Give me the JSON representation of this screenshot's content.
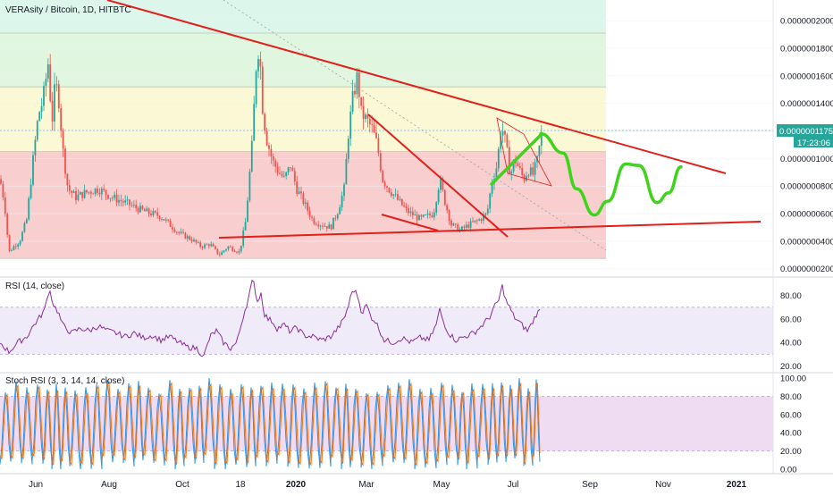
{
  "chart_data": [
    {
      "type": "candlestick",
      "title": "VERAsity / Bitcoin, 1D, HITBTC",
      "price_badge": {
        "value": "0.0000001175",
        "countdown": "17:23:06",
        "color": "#26a69a"
      },
      "y_ticks": [
        "0.0000002000",
        "0.0000001800",
        "0.0000001600",
        "0.0000001400",
        "0.0000001200",
        "0.0000001000",
        "0.0000000800",
        "0.0000000600",
        "0.0000000400",
        "0.0000000200"
      ],
      "ylim": [
        1.4e-08,
        2.15e-07
      ],
      "fib_zones": [
        {
          "from": 2.75e-08,
          "to": 1.05e-07,
          "color": "#f3a6a6"
        },
        {
          "from": 1.05e-07,
          "to": 1.52e-07,
          "color": "#f7f3b4"
        },
        {
          "from": 1.52e-07,
          "to": 1.91e-07,
          "color": "#c9efc3"
        },
        {
          "from": 1.91e-07,
          "to": 2.15e-07,
          "color": "#bfeedd"
        }
      ],
      "colors": {
        "up": "#26a69a",
        "down": "#ef5350",
        "trendline": "#e0201b",
        "projection": "#3ed41c"
      },
      "approx_price_series": [
        [
          0,
          8.5e-08
        ],
        [
          5,
          6.8e-08
        ],
        [
          10,
          3.2e-08
        ],
        [
          15,
          3.6e-08
        ],
        [
          22,
          4e-08
        ],
        [
          30,
          5.6e-08
        ],
        [
          38,
          1.05e-07
        ],
        [
          43,
          1.32e-07
        ],
        [
          48,
          1.42e-07
        ],
        [
          54,
          1.7e-07
        ],
        [
          58,
          1.25e-07
        ],
        [
          62,
          1.55e-07
        ],
        [
          66,
          1.42e-07
        ],
        [
          70,
          1.08e-07
        ],
        [
          76,
          7.8e-08
        ],
        [
          85,
          7.2e-08
        ],
        [
          95,
          7.5e-08
        ],
        [
          110,
          7.8e-08
        ],
        [
          125,
          7.2e-08
        ],
        [
          140,
          6.8e-08
        ],
        [
          160,
          6.2e-08
        ],
        [
          180,
          5.8e-08
        ],
        [
          200,
          4.6e-08
        ],
        [
          215,
          4.1e-08
        ],
        [
          225,
          3.6e-08
        ],
        [
          235,
          3.8e-08
        ],
        [
          245,
          3e-08
        ],
        [
          255,
          3.6e-08
        ],
        [
          262,
          3.4e-08
        ],
        [
          268,
          3.2e-08
        ],
        [
          275,
          5.5e-08
        ],
        [
          282,
          1.1e-07
        ],
        [
          287,
          1.72e-07
        ],
        [
          290,
          1.83e-07
        ],
        [
          294,
          1.35e-07
        ],
        [
          298,
          1.15e-07
        ],
        [
          305,
          9.8e-08
        ],
        [
          312,
          9e-08
        ],
        [
          318,
          8.5e-08
        ],
        [
          325,
          9.5e-08
        ],
        [
          332,
          7.8e-08
        ],
        [
          340,
          6.8e-08
        ],
        [
          350,
          5.5e-08
        ],
        [
          360,
          5.2e-08
        ],
        [
          370,
          5e-08
        ],
        [
          378,
          6.2e-08
        ],
        [
          385,
          7.8e-08
        ],
        [
          390,
          1.2e-07
        ],
        [
          395,
          1.45e-07
        ],
        [
          400,
          1.6e-07
        ],
        [
          404,
          1.33e-07
        ],
        [
          410,
          1.28e-07
        ],
        [
          416,
          1.22e-07
        ],
        [
          422,
          1.1e-07
        ],
        [
          428,
          8.5e-08
        ],
        [
          435,
          7.8e-08
        ],
        [
          445,
          7e-08
        ],
        [
          455,
          6.2e-08
        ],
        [
          470,
          5.6e-08
        ],
        [
          485,
          6e-08
        ],
        [
          492,
          8.5e-08
        ],
        [
          498,
          6.8e-08
        ],
        [
          505,
          5.2e-08
        ],
        [
          515,
          4.8e-08
        ],
        [
          525,
          5.2e-08
        ],
        [
          535,
          5.5e-08
        ],
        [
          545,
          6e-08
        ],
        [
          550,
          8.2e-08
        ],
        [
          556,
          9.5e-08
        ],
        [
          561,
          1.25e-07
        ],
        [
          566,
          1.1e-07
        ],
        [
          571,
          8.8e-08
        ],
        [
          576,
          1e-07
        ],
        [
          581,
          9.2e-08
        ],
        [
          586,
          8.5e-08
        ],
        [
          591,
          9.2e-08
        ],
        [
          596,
          8.8e-08
        ],
        [
          601,
          9.8e-08
        ],
        [
          606,
          1.18e-07
        ]
      ],
      "projection_wave": [
        [
          605,
          1.18e-07
        ],
        [
          630,
          1.04e-07
        ],
        [
          645,
          7.8e-08
        ],
        [
          665,
          5.9e-08
        ],
        [
          680,
          6.9e-08
        ],
        [
          700,
          9.6e-08
        ],
        [
          715,
          9.5e-08
        ],
        [
          735,
          6.8e-08
        ],
        [
          748,
          7.5e-08
        ],
        [
          762,
          9.4e-08
        ]
      ]
    },
    {
      "type": "line",
      "title": "RSI (14, close)",
      "y_ticks": [
        "80.00",
        "60.00",
        "40.00",
        "20.00"
      ],
      "ylim": [
        15,
        95
      ],
      "band": [
        30,
        70
      ],
      "line_color": "#8a2d9a",
      "values_approx": [
        [
          0,
          40
        ],
        [
          10,
          32
        ],
        [
          20,
          40
        ],
        [
          30,
          45
        ],
        [
          38,
          55
        ],
        [
          45,
          62
        ],
        [
          50,
          68
        ],
        [
          55,
          86
        ],
        [
          60,
          72
        ],
        [
          65,
          66
        ],
        [
          70,
          55
        ],
        [
          80,
          48
        ],
        [
          90,
          52
        ],
        [
          100,
          50
        ],
        [
          110,
          54
        ],
        [
          120,
          50
        ],
        [
          130,
          48
        ],
        [
          140,
          45
        ],
        [
          150,
          48
        ],
        [
          160,
          44
        ],
        [
          170,
          46
        ],
        [
          180,
          42
        ],
        [
          190,
          45
        ],
        [
          200,
          40
        ],
        [
          210,
          36
        ],
        [
          220,
          35
        ],
        [
          228,
          28
        ],
        [
          235,
          45
        ],
        [
          242,
          50
        ],
        [
          250,
          40
        ],
        [
          258,
          35
        ],
        [
          265,
          40
        ],
        [
          272,
          62
        ],
        [
          278,
          78
        ],
        [
          283,
          94
        ],
        [
          288,
          75
        ],
        [
          292,
          82
        ],
        [
          296,
          64
        ],
        [
          300,
          60
        ],
        [
          305,
          58
        ],
        [
          310,
          52
        ],
        [
          318,
          55
        ],
        [
          325,
          49
        ],
        [
          332,
          53
        ],
        [
          340,
          46
        ],
        [
          350,
          45
        ],
        [
          360,
          42
        ],
        [
          370,
          45
        ],
        [
          378,
          52
        ],
        [
          385,
          60
        ],
        [
          390,
          72
        ],
        [
          395,
          86
        ],
        [
          400,
          80
        ],
        [
          405,
          65
        ],
        [
          410,
          72
        ],
        [
          415,
          62
        ],
        [
          420,
          58
        ],
        [
          425,
          50
        ],
        [
          430,
          42
        ],
        [
          440,
          40
        ],
        [
          450,
          44
        ],
        [
          460,
          40
        ],
        [
          470,
          44
        ],
        [
          480,
          42
        ],
        [
          488,
          55
        ],
        [
          492,
          68
        ],
        [
          496,
          58
        ],
        [
          502,
          48
        ],
        [
          510,
          42
        ],
        [
          520,
          45
        ],
        [
          530,
          48
        ],
        [
          540,
          55
        ],
        [
          548,
          62
        ],
        [
          553,
          70
        ],
        [
          558,
          76
        ],
        [
          562,
          88
        ],
        [
          566,
          76
        ],
        [
          570,
          70
        ],
        [
          575,
          62
        ],
        [
          580,
          58
        ],
        [
          585,
          54
        ],
        [
          590,
          50
        ],
        [
          595,
          56
        ],
        [
          600,
          64
        ],
        [
          604,
          67
        ]
      ]
    },
    {
      "type": "line",
      "title": "Stoch RSI (3, 3, 14, 14, close)",
      "y_ticks": [
        "100.00",
        "80.00",
        "60.00",
        "40.00",
        "20.00",
        "0.00"
      ],
      "ylim": [
        -5,
        105
      ],
      "band": [
        20,
        80
      ],
      "series": [
        {
          "name": "",
          "color": "#2196f3"
        },
        {
          "name": "",
          "color": "#ff6d00"
        }
      ],
      "oscillation_x_approx": [
        0,
        12,
        24,
        36,
        48,
        58,
        68,
        78,
        90,
        102,
        114,
        126,
        138,
        150,
        160,
        172,
        184,
        196,
        206,
        218,
        228,
        240,
        252,
        264,
        276,
        286,
        298,
        310,
        322,
        334,
        346,
        358,
        370,
        382,
        392,
        404,
        416,
        428,
        440,
        452,
        464,
        476,
        488,
        500,
        512,
        522,
        534,
        546,
        556,
        566,
        576,
        586,
        596,
        604
      ]
    }
  ],
  "x_ticks": [
    {
      "label": "Jun",
      "bold": false
    },
    {
      "label": "Aug",
      "bold": false
    },
    {
      "label": "Oct",
      "bold": false
    },
    {
      "label": "18",
      "bold": false
    },
    {
      "label": "2020",
      "bold": true
    },
    {
      "label": "Mar",
      "bold": false
    },
    {
      "label": "May",
      "bold": false
    },
    {
      "label": "Jul",
      "bold": false
    },
    {
      "label": "Sep",
      "bold": false
    },
    {
      "label": "Nov",
      "bold": false
    },
    {
      "label": "2021",
      "bold": true
    }
  ]
}
